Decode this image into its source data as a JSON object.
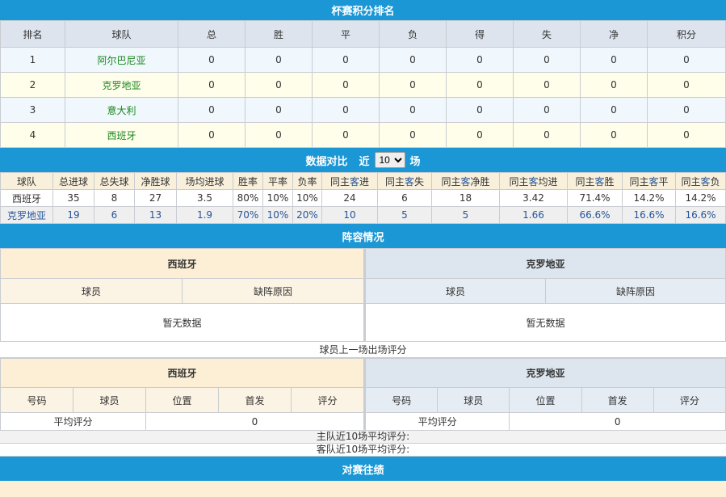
{
  "standings": {
    "title": "杯赛积分排名",
    "headers": [
      "排名",
      "球队",
      "总",
      "胜",
      "平",
      "负",
      "得",
      "失",
      "净",
      "积分"
    ],
    "rows": [
      [
        "1",
        "阿尔巴尼亚",
        "0",
        "0",
        "0",
        "0",
        "0",
        "0",
        "0",
        "0"
      ],
      [
        "2",
        "克罗地亚",
        "0",
        "0",
        "0",
        "0",
        "0",
        "0",
        "0",
        "0"
      ],
      [
        "3",
        "意大利",
        "0",
        "0",
        "0",
        "0",
        "0",
        "0",
        "0",
        "0"
      ],
      [
        "4",
        "西班牙",
        "0",
        "0",
        "0",
        "0",
        "0",
        "0",
        "0",
        "0"
      ]
    ]
  },
  "compare": {
    "title": "数据对比",
    "near": "近",
    "selected": "10",
    "unit": "场",
    "headers": [
      "球队",
      "总进球",
      "总失球",
      "净胜球",
      "场均进球",
      "胜率",
      "平率",
      "负率",
      "同主客进",
      "同主客失",
      "同主客净胜",
      "同主客均进",
      "同主客胜",
      "同主客平",
      "同主客负"
    ],
    "rows": [
      [
        "西班牙",
        "35",
        "8",
        "27",
        "3.5",
        "80%",
        "10%",
        "10%",
        "24",
        "6",
        "18",
        "3.42",
        "71.4%",
        "14.2%",
        "14.2%"
      ],
      [
        "克罗地亚",
        "19",
        "6",
        "13",
        "1.9",
        "70%",
        "10%",
        "20%",
        "10",
        "5",
        "5",
        "1.66",
        "66.6%",
        "16.6%",
        "16.6%"
      ]
    ]
  },
  "lineup": {
    "title": "阵容情况",
    "home": "西班牙",
    "away": "克罗地亚",
    "player": "球员",
    "reason": "缺阵原因",
    "empty": "暂无数据",
    "last_title": "球员上一场出场评分",
    "rating_headers": [
      "号码",
      "球员",
      "位置",
      "首发",
      "评分"
    ],
    "avg_label": "平均评分",
    "home_avg": "0",
    "away_avg": "0",
    "home_recent": "主队近10场平均评分:",
    "away_recent": "客队近10场平均评分:"
  },
  "h2h": {
    "title": "对赛往绩"
  },
  "colors": {
    "bar": "#1b97d5",
    "team": "#18871c",
    "away": "#25559a"
  }
}
